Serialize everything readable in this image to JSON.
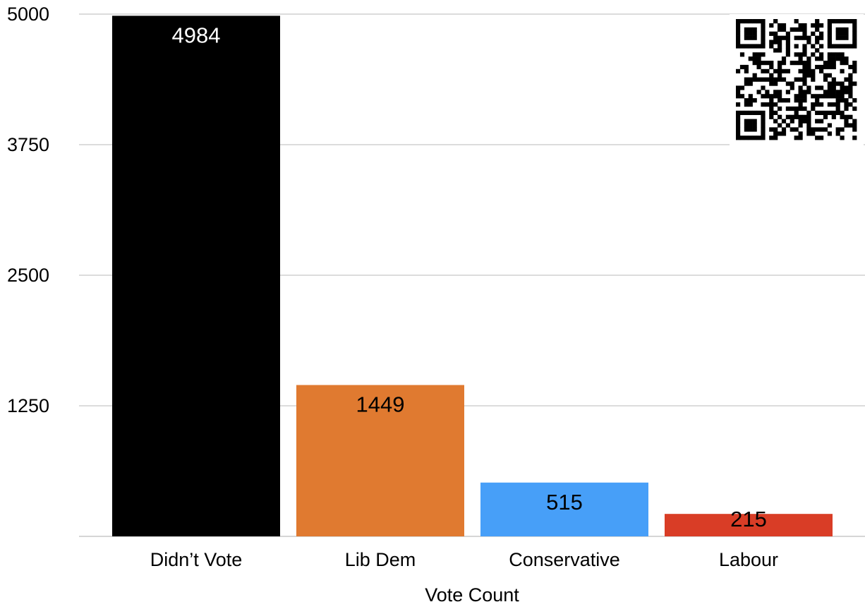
{
  "chart_data": {
    "type": "bar",
    "title": "",
    "xlabel": "Vote Count",
    "ylabel": "",
    "ylim": [
      0,
      5000
    ],
    "yticks": [
      1250,
      2500,
      3750,
      5000
    ],
    "ytick_labels": [
      "1250",
      "2500",
      "3750",
      "5000"
    ],
    "grid": true,
    "categories": [
      "Didn’t Vote",
      "Lib Dem",
      "Conservative",
      "Labour"
    ],
    "values": [
      4984,
      1449,
      515,
      215
    ],
    "value_labels": [
      "4984",
      "1449",
      "515",
      "215"
    ],
    "colors": [
      "#000000",
      "#E07A30",
      "#479FF8",
      "#D93D26"
    ],
    "label_colors": [
      "#ffffff",
      "#000000",
      "#000000",
      "#000000"
    ]
  },
  "qr_code": {
    "icon": "qr-code-icon"
  }
}
